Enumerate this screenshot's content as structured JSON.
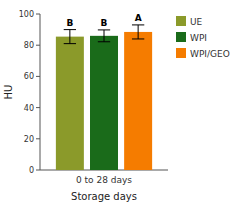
{
  "chart_data": {
    "type": "bar",
    "xlabel": "Storage days",
    "ylabel": "HU",
    "categories": [
      "0 to 28 days"
    ],
    "series": [
      {
        "name": "UE",
        "color": "#8B9A2A",
        "values": [
          85.5
        ],
        "errors": [
          4.5
        ],
        "letters": [
          "B"
        ]
      },
      {
        "name": "WPI",
        "color": "#1A6B1A",
        "values": [
          86.0
        ],
        "errors": [
          3.8
        ],
        "letters": [
          "B"
        ]
      },
      {
        "name": "WPI/GEO",
        "color": "#F57C00",
        "values": [
          88.5
        ],
        "errors": [
          4.5
        ],
        "letters": [
          "A"
        ]
      }
    ],
    "ylim": [
      0,
      100
    ],
    "yticks": [
      0,
      20,
      40,
      60,
      80,
      100
    ],
    "legend": "right"
  }
}
